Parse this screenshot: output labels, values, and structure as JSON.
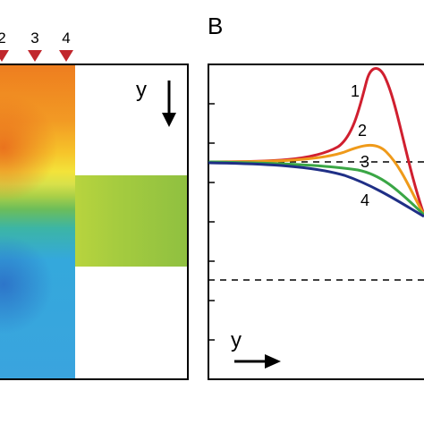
{
  "panel_b": {
    "letter": "B"
  },
  "panel_a": {
    "markers": [
      "2",
      "3",
      "4"
    ],
    "axis_label": "y"
  },
  "panel_b_plot": {
    "axis_label": "y",
    "curve_labels": [
      "1",
      "2",
      "3",
      "4"
    ],
    "curve_colors": [
      "#d01f2f",
      "#ef9a1a",
      "#3aa645",
      "#1f2f86"
    ]
  },
  "colors": {
    "marker": "#c1272d",
    "frame": "#000000"
  }
}
